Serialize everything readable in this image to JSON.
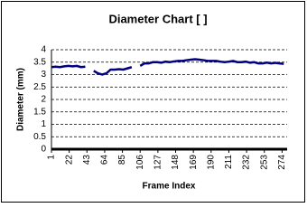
{
  "chart_data": {
    "type": "line",
    "title": "Diameter Chart [   ]",
    "x_label": "Frame Index",
    "y_label": "Diameter (mm)",
    "x": [
      1,
      6,
      11,
      16,
      21,
      26,
      31,
      36,
      41,
      46,
      51,
      56,
      61,
      66,
      71,
      76,
      81,
      86,
      91,
      96,
      101,
      106,
      111,
      116,
      121,
      126,
      131,
      136,
      141,
      146,
      151,
      156,
      161,
      166,
      171,
      176,
      181,
      186,
      191,
      196,
      201,
      206,
      211,
      216,
      221,
      226,
      231,
      236,
      241,
      246,
      251,
      256,
      261,
      266,
      271,
      276
    ],
    "values": [
      3.3,
      3.32,
      3.3,
      3.33,
      3.35,
      3.33,
      3.35,
      3.3,
      3.32,
      null,
      3.15,
      3.05,
      3.0,
      3.05,
      3.2,
      3.2,
      3.22,
      3.2,
      3.25,
      3.3,
      null,
      3.35,
      3.45,
      3.45,
      3.5,
      3.5,
      3.48,
      3.52,
      3.5,
      3.53,
      3.55,
      3.55,
      3.58,
      3.6,
      3.62,
      3.6,
      3.58,
      3.55,
      3.55,
      3.55,
      3.52,
      3.5,
      3.52,
      3.55,
      3.5,
      3.5,
      3.52,
      3.48,
      3.5,
      3.45,
      3.45,
      3.48,
      3.45,
      3.47,
      3.45,
      3.43
    ],
    "color": "#000080",
    "xlim": [
      1,
      280
    ],
    "xticks": [
      1,
      22,
      43,
      64,
      85,
      106,
      127,
      148,
      169,
      190,
      211,
      232,
      253,
      274
    ],
    "ylim": [
      0,
      4
    ],
    "yticks": [
      0,
      0.5,
      1,
      1.5,
      2,
      2.5,
      3,
      3.5,
      4
    ],
    "grid": true
  }
}
